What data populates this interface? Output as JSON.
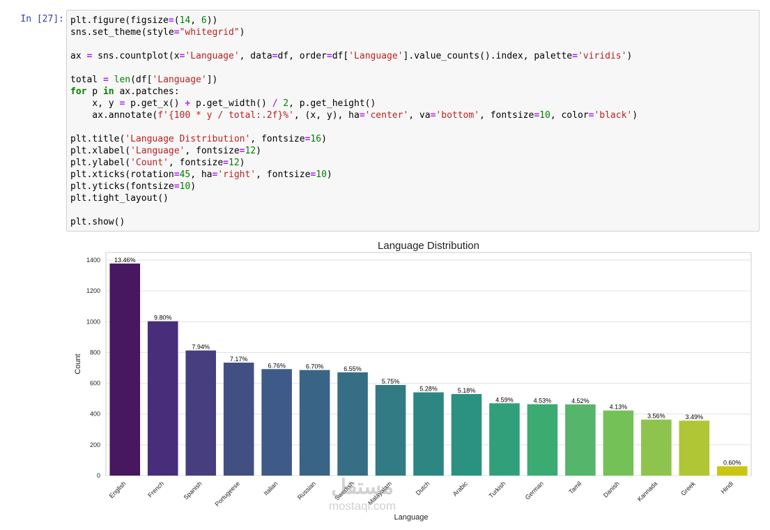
{
  "cell": {
    "prompt": "In [27]:",
    "code_lines": [
      "plt.figure(figsize=(14, 6))",
      "sns.set_theme(style=\"whitegrid\")",
      "",
      "ax = sns.countplot(x='Language', data=df, order=df['Language'].value_counts().index, palette='viridis')",
      "",
      "total = len(df['Language'])",
      "for p in ax.patches:",
      "    x, y = p.get_x() + p.get_width() / 2, p.get_height()",
      "    ax.annotate(f'{100 * y / total:.2f}%', (x, y), ha='center', va='bottom', fontsize=10, color='black')",
      "",
      "plt.title('Language Distribution', fontsize=16)",
      "plt.xlabel('Language', fontsize=12)",
      "plt.ylabel('Count', fontsize=12)",
      "plt.xticks(rotation=45, ha='right', fontsize=10)",
      "plt.yticks(fontsize=10)",
      "plt.tight_layout()",
      "",
      "plt.show()"
    ]
  },
  "chart_data": {
    "type": "bar",
    "title": "Language Distribution",
    "xlabel": "Language",
    "ylabel": "Count",
    "ylim": [
      0,
      1450
    ],
    "yticks": [
      0,
      200,
      400,
      600,
      800,
      1000,
      1200,
      1400
    ],
    "grid": true,
    "categories": [
      "English",
      "French",
      "Spanish",
      "Portugeese",
      "Italian",
      "Russian",
      "Swedish",
      "Malayalam",
      "Dutch",
      "Arabic",
      "Turkish",
      "German",
      "Tamil",
      "Danish",
      "Kannada",
      "Greek",
      "Hindi"
    ],
    "values": [
      1378,
      1003,
      813,
      734,
      692,
      686,
      671,
      589,
      541,
      530,
      470,
      464,
      463,
      423,
      364,
      357,
      61
    ],
    "labels": [
      "13.46%",
      "9.80%",
      "7.94%",
      "7.17%",
      "6.76%",
      "6.70%",
      "6.55%",
      "5.75%",
      "5.28%",
      "5.18%",
      "4.59%",
      "4.53%",
      "4.52%",
      "4.13%",
      "3.56%",
      "3.49%",
      "0.60%"
    ],
    "colors": [
      "#47175f",
      "#472d7a",
      "#463e7f",
      "#414f82",
      "#3e5a88",
      "#3a6486",
      "#366e86",
      "#327a84",
      "#2e8682",
      "#2b9180",
      "#31a07a",
      "#3cab72",
      "#55b56b",
      "#74c158",
      "#8ec44d",
      "#b0c634",
      "#cbc615"
    ]
  },
  "watermark": {
    "arabic": "مستقل",
    "latin": "mostaql.com"
  }
}
